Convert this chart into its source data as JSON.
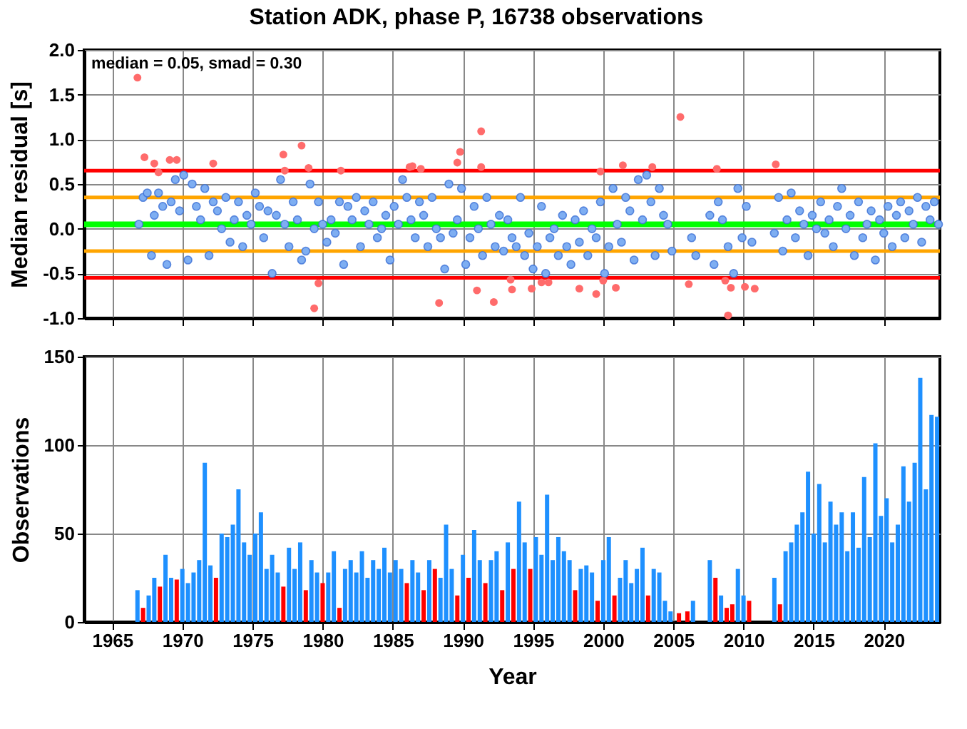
{
  "chart_data": [
    {
      "type": "scatter",
      "title": "Station ADK, phase P, 16738 observations",
      "ylabel": "Median residual [s]",
      "annotations": [
        "median = 0.05, smad = 0.30"
      ],
      "marker": "circle",
      "grid": true,
      "tick_labels": "y",
      "xlim": [
        1963,
        2024
      ],
      "xticks": [
        1965,
        1970,
        1975,
        1980,
        1985,
        1990,
        1995,
        2000,
        2005,
        2010,
        2015,
        2020
      ],
      "ylim": [
        -1,
        2
      ],
      "yticks": [
        {
          "value": -1,
          "label": "-1.0"
        },
        {
          "value": -0.5,
          "label": "-0.5"
        },
        {
          "value": 0,
          "label": "0.0"
        },
        {
          "value": 0.5,
          "label": "0.5"
        },
        {
          "value": 1,
          "label": "1.0"
        },
        {
          "value": 1.5,
          "label": "1.5"
        },
        {
          "value": 2,
          "label": "2.0"
        }
      ],
      "ref_lines": [
        {
          "axis": "y",
          "value": 0.05,
          "color": "#00ff00"
        },
        {
          "axis": "y",
          "value": 0.35,
          "color": "#ffa500"
        },
        {
          "axis": "y",
          "value": -0.25,
          "color": "#ffa500"
        },
        {
          "axis": "y",
          "value": 0.65,
          "color": "#ff0000"
        },
        {
          "axis": "y",
          "value": -0.55,
          "color": "#ff0000"
        }
      ],
      "series": [
        {
          "color": "#7eaef2",
          "x": [
            1966.9,
            1967.2,
            1967.5,
            1967.8,
            1968.0,
            1968.3,
            1968.6,
            1968.9,
            1969.2,
            1969.5,
            1969.8,
            1970.1,
            1970.4,
            1970.7,
            1971.0,
            1971.3,
            1971.6,
            1971.9,
            1972.2,
            1972.5,
            1972.8,
            1973.1,
            1973.4,
            1973.7,
            1974.0,
            1974.3,
            1974.6,
            1974.9,
            1975.2,
            1975.5,
            1975.8,
            1976.1,
            1976.4,
            1976.7,
            1977.0,
            1977.3,
            1977.6,
            1977.9,
            1978.2,
            1978.5,
            1978.8,
            1979.1,
            1979.4,
            1979.7,
            1980.0,
            1980.3,
            1980.6,
            1980.9,
            1981.2,
            1981.5,
            1981.8,
            1982.1,
            1982.4,
            1982.7,
            1983.0,
            1983.3,
            1983.6,
            1983.9,
            1984.2,
            1984.5,
            1984.8,
            1985.1,
            1985.4,
            1985.7,
            1986.0,
            1986.3,
            1986.6,
            1986.9,
            1987.2,
            1987.5,
            1987.8,
            1988.1,
            1988.4,
            1988.7,
            1989.0,
            1989.3,
            1989.6,
            1989.9,
            1990.2,
            1990.5,
            1990.8,
            1991.1,
            1991.4,
            1991.7,
            1992.0,
            1992.3,
            1992.6,
            1992.9,
            1993.2,
            1993.5,
            1993.8,
            1994.1,
            1994.4,
            1994.7,
            1995.0,
            1995.3,
            1995.6,
            1995.9,
            1996.2,
            1996.5,
            1996.8,
            1997.1,
            1997.4,
            1997.7,
            1998.0,
            1998.3,
            1998.6,
            1998.9,
            1999.2,
            1999.5,
            1999.8,
            2000.1,
            2000.4,
            2000.7,
            2001.0,
            2001.3,
            2001.6,
            2001.9,
            2002.2,
            2002.5,
            2002.8,
            2003.1,
            2003.4,
            2003.7,
            2004.0,
            2004.3,
            2004.6,
            2004.9,
            2006.3,
            2006.6,
            2007.6,
            2007.9,
            2008.2,
            2008.5,
            2008.9,
            2009.3,
            2009.6,
            2009.9,
            2010.2,
            2010.6,
            2012.2,
            2012.5,
            2012.8,
            2013.1,
            2013.4,
            2013.7,
            2014.0,
            2014.3,
            2014.6,
            2014.9,
            2015.2,
            2015.5,
            2015.8,
            2016.1,
            2016.4,
            2016.7,
            2017.0,
            2017.3,
            2017.6,
            2017.9,
            2018.2,
            2018.5,
            2018.8,
            2019.1,
            2019.4,
            2019.7,
            2020.0,
            2020.3,
            2020.6,
            2020.9,
            2021.2,
            2021.5,
            2021.8,
            2022.1,
            2022.4,
            2022.7,
            2023.0,
            2023.3,
            2023.6,
            2023.9
          ],
          "values": [
            0.05,
            0.35,
            0.4,
            -0.3,
            0.15,
            0.4,
            0.25,
            -0.4,
            0.3,
            0.55,
            0.2,
            0.6,
            -0.35,
            0.5,
            0.25,
            0.1,
            0.45,
            -0.3,
            0.3,
            0.2,
            0.0,
            0.35,
            -0.15,
            0.1,
            0.3,
            -0.2,
            0.15,
            0.05,
            0.4,
            0.25,
            -0.1,
            0.2,
            -0.5,
            0.15,
            0.55,
            0.05,
            -0.2,
            0.3,
            0.1,
            -0.35,
            -0.25,
            0.5,
            0.0,
            0.3,
            0.05,
            -0.15,
            0.1,
            -0.05,
            0.3,
            -0.4,
            0.25,
            0.1,
            0.35,
            -0.2,
            0.2,
            0.05,
            0.3,
            -0.1,
            0.0,
            0.15,
            -0.35,
            0.25,
            0.05,
            0.55,
            0.35,
            0.1,
            -0.1,
            0.3,
            0.15,
            -0.2,
            0.35,
            0.0,
            -0.1,
            -0.45,
            0.5,
            -0.05,
            0.1,
            0.45,
            -0.4,
            -0.1,
            0.25,
            0.0,
            -0.3,
            0.35,
            0.05,
            -0.2,
            0.15,
            -0.25,
            0.1,
            -0.1,
            -0.2,
            0.35,
            -0.3,
            -0.05,
            -0.45,
            -0.2,
            0.25,
            -0.5,
            -0.1,
            0.0,
            -0.3,
            0.15,
            -0.2,
            -0.4,
            0.1,
            -0.15,
            0.2,
            -0.3,
            0.0,
            -0.1,
            0.3,
            -0.5,
            -0.2,
            0.45,
            0.05,
            -0.15,
            0.35,
            0.2,
            -0.35,
            0.55,
            0.1,
            0.6,
            0.3,
            -0.3,
            0.45,
            0.15,
            0.05,
            -0.25,
            -0.1,
            -0.3,
            0.15,
            -0.4,
            0.3,
            0.1,
            -0.2,
            -0.5,
            0.45,
            -0.1,
            0.25,
            -0.15,
            -0.05,
            0.35,
            -0.25,
            0.1,
            0.4,
            -0.1,
            0.2,
            0.05,
            -0.3,
            0.15,
            0.0,
            0.3,
            -0.05,
            0.1,
            -0.2,
            0.25,
            0.45,
            0.0,
            0.15,
            -0.3,
            0.3,
            -0.1,
            0.05,
            0.2,
            -0.35,
            0.1,
            -0.05,
            0.25,
            -0.2,
            0.15,
            0.3,
            -0.1,
            0.2,
            0.05,
            0.35,
            -0.15,
            0.25,
            0.1,
            0.3,
            0.05
          ]
        },
        {
          "color": "#ff6b6b",
          "x": [
            1966.8,
            1967.3,
            1968.0,
            1968.3,
            1969.1,
            1969.6,
            1972.2,
            1977.2,
            1977.3,
            1978.5,
            1979.0,
            1979.7,
            1979.4,
            1981.3,
            1986.2,
            1986.4,
            1987.0,
            1988.3,
            1989.6,
            1989.8,
            1991.3,
            1991.3,
            1991.0,
            1992.2,
            1993.4,
            1993.5,
            1994.9,
            1995.6,
            1996.1,
            1998.3,
            1999.5,
            2000.0,
            1999.8,
            2000.9,
            2001.4,
            2003.5,
            2005.5,
            2006.1,
            2008.1,
            2008.7,
            2009.1,
            2008.9,
            2010.1,
            2010.8,
            2012.3
          ],
          "values": [
            1.69,
            0.8,
            0.73,
            0.63,
            0.77,
            0.77,
            0.73,
            0.83,
            0.65,
            0.93,
            0.68,
            -0.61,
            -0.89,
            0.65,
            0.69,
            0.7,
            0.67,
            -0.83,
            0.74,
            0.86,
            1.09,
            0.69,
            -0.69,
            -0.82,
            -0.57,
            -0.68,
            -0.67,
            -0.6,
            -0.6,
            -0.67,
            -0.73,
            -0.58,
            0.64,
            -0.66,
            0.71,
            0.69,
            1.25,
            -0.62,
            0.67,
            -0.58,
            -0.66,
            -0.97,
            -0.65,
            -0.67,
            0.72
          ]
        }
      ]
    },
    {
      "type": "bar",
      "xlabel": "Year",
      "ylabel": "Observations",
      "grid": true,
      "xlim": [
        1963,
        2024
      ],
      "xticks": [
        1965,
        1970,
        1975,
        1980,
        1985,
        1990,
        1995,
        2000,
        2005,
        2010,
        2015,
        2020
      ],
      "ylim": [
        0,
        150
      ],
      "yticks": [
        0,
        50,
        100,
        150
      ],
      "x": [
        1966.8,
        1967.2,
        1967.6,
        1968.0,
        1968.4,
        1968.8,
        1969.2,
        1969.6,
        1970.0,
        1970.4,
        1970.8,
        1971.2,
        1971.6,
        1972.0,
        1972.4,
        1972.8,
        1973.2,
        1973.6,
        1974.0,
        1974.4,
        1974.8,
        1975.2,
        1975.6,
        1976.0,
        1976.4,
        1976.8,
        1977.2,
        1977.6,
        1978.0,
        1978.4,
        1978.8,
        1979.2,
        1979.6,
        1980.0,
        1980.4,
        1980.8,
        1981.2,
        1981.6,
        1982.0,
        1982.4,
        1982.8,
        1983.2,
        1983.6,
        1984.0,
        1984.4,
        1984.8,
        1985.2,
        1985.6,
        1986.0,
        1986.4,
        1986.8,
        1987.2,
        1987.6,
        1988.0,
        1988.4,
        1988.8,
        1989.2,
        1989.6,
        1990.0,
        1990.4,
        1990.8,
        1991.2,
        1991.6,
        1992.0,
        1992.4,
        1992.8,
        1993.2,
        1993.6,
        1994.0,
        1994.4,
        1994.8,
        1995.2,
        1995.6,
        1996.0,
        1996.4,
        1996.8,
        1997.2,
        1997.6,
        1998.0,
        1998.4,
        1998.8,
        1999.2,
        1999.6,
        2000.0,
        2000.4,
        2000.8,
        2001.2,
        2001.6,
        2002.0,
        2002.4,
        2002.8,
        2003.2,
        2003.6,
        2004.0,
        2004.4,
        2004.8,
        2005.4,
        2006.0,
        2006.4,
        2007.6,
        2008.0,
        2008.4,
        2008.8,
        2009.2,
        2009.6,
        2010.0,
        2010.4,
        2012.2,
        2012.6,
        2013.0,
        2013.4,
        2013.8,
        2014.2,
        2014.6,
        2015.0,
        2015.4,
        2015.8,
        2016.2,
        2016.6,
        2017.0,
        2017.4,
        2017.8,
        2018.2,
        2018.6,
        2019.0,
        2019.4,
        2019.8,
        2020.2,
        2020.6,
        2021.0,
        2021.4,
        2021.8,
        2022.2,
        2022.6,
        2023.0,
        2023.4,
        2023.8
      ],
      "values": [
        18,
        8,
        15,
        25,
        20,
        38,
        25,
        24,
        30,
        22,
        28,
        35,
        90,
        32,
        25,
        50,
        48,
        55,
        75,
        45,
        38,
        50,
        62,
        30,
        38,
        28,
        20,
        42,
        30,
        45,
        18,
        35,
        28,
        22,
        28,
        40,
        8,
        30,
        35,
        28,
        40,
        25,
        35,
        30,
        42,
        28,
        35,
        30,
        22,
        35,
        28,
        18,
        35,
        30,
        25,
        55,
        30,
        15,
        38,
        25,
        52,
        35,
        22,
        35,
        40,
        18,
        45,
        30,
        68,
        45,
        30,
        48,
        38,
        72,
        35,
        48,
        40,
        35,
        18,
        30,
        32,
        28,
        12,
        35,
        48,
        15,
        25,
        35,
        22,
        30,
        42,
        15,
        30,
        28,
        12,
        6,
        5,
        6,
        12,
        35,
        25,
        15,
        8,
        10,
        30,
        15,
        12,
        25,
        10,
        40,
        45,
        55,
        62,
        85,
        50,
        78,
        45,
        68,
        55,
        62,
        40,
        62,
        42,
        82,
        48,
        101,
        60,
        70,
        45,
        55,
        88,
        68,
        90,
        138,
        75,
        117,
        116
      ],
      "colors": [
        "#1e90ff",
        "#ff0000",
        "#1e90ff",
        "#1e90ff",
        "#ff0000",
        "#1e90ff",
        "#1e90ff",
        "#ff0000",
        "#1e90ff",
        "#1e90ff",
        "#1e90ff",
        "#1e90ff",
        "#1e90ff",
        "#1e90ff",
        "#ff0000",
        "#1e90ff",
        "#1e90ff",
        "#1e90ff",
        "#1e90ff",
        "#1e90ff",
        "#1e90ff",
        "#1e90ff",
        "#1e90ff",
        "#1e90ff",
        "#1e90ff",
        "#1e90ff",
        "#ff0000",
        "#1e90ff",
        "#1e90ff",
        "#1e90ff",
        "#ff0000",
        "#1e90ff",
        "#1e90ff",
        "#ff0000",
        "#1e90ff",
        "#1e90ff",
        "#ff0000",
        "#1e90ff",
        "#1e90ff",
        "#1e90ff",
        "#1e90ff",
        "#1e90ff",
        "#1e90ff",
        "#1e90ff",
        "#1e90ff",
        "#1e90ff",
        "#1e90ff",
        "#1e90ff",
        "#ff0000",
        "#1e90ff",
        "#1e90ff",
        "#ff0000",
        "#1e90ff",
        "#ff0000",
        "#1e90ff",
        "#1e90ff",
        "#1e90ff",
        "#ff0000",
        "#1e90ff",
        "#ff0000",
        "#1e90ff",
        "#1e90ff",
        "#ff0000",
        "#1e90ff",
        "#1e90ff",
        "#ff0000",
        "#1e90ff",
        "#ff0000",
        "#1e90ff",
        "#1e90ff",
        "#ff0000",
        "#1e90ff",
        "#1e90ff",
        "#1e90ff",
        "#1e90ff",
        "#1e90ff",
        "#1e90ff",
        "#1e90ff",
        "#ff0000",
        "#1e90ff",
        "#1e90ff",
        "#1e90ff",
        "#ff0000",
        "#1e90ff",
        "#1e90ff",
        "#ff0000",
        "#1e90ff",
        "#1e90ff",
        "#1e90ff",
        "#1e90ff",
        "#1e90ff",
        "#ff0000",
        "#1e90ff",
        "#1e90ff",
        "#1e90ff",
        "#1e90ff",
        "#ff0000",
        "#ff0000",
        "#1e90ff",
        "#1e90ff",
        "#ff0000",
        "#1e90ff",
        "#ff0000",
        "#ff0000",
        "#1e90ff",
        "#1e90ff",
        "#ff0000",
        "#1e90ff",
        "#ff0000",
        "#1e90ff",
        "#1e90ff",
        "#1e90ff",
        "#1e90ff",
        "#1e90ff",
        "#1e90ff",
        "#1e90ff",
        "#1e90ff",
        "#1e90ff",
        "#1e90ff",
        "#1e90ff",
        "#1e90ff",
        "#1e90ff",
        "#1e90ff",
        "#1e90ff",
        "#1e90ff",
        "#1e90ff",
        "#1e90ff",
        "#1e90ff",
        "#1e90ff",
        "#1e90ff",
        "#1e90ff",
        "#1e90ff",
        "#1e90ff",
        "#1e90ff",
        "#1e90ff",
        "#1e90ff",
        "#1e90ff"
      ]
    }
  ]
}
